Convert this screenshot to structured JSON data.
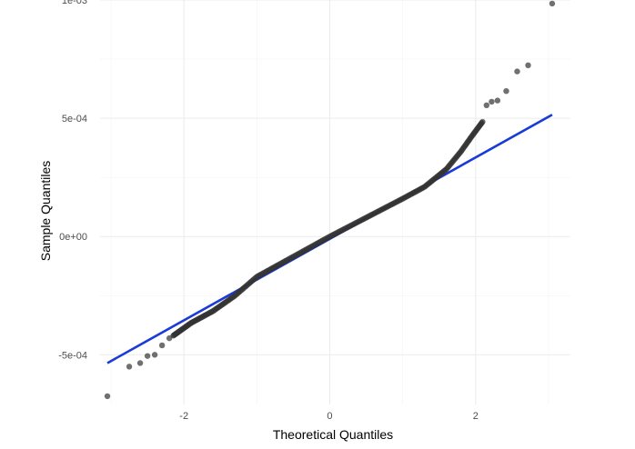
{
  "chart_data": {
    "type": "scatter",
    "title": "",
    "xlabel": "Theoretical Quantiles",
    "ylabel": "Sample Quantiles",
    "xlim": [
      -3.15,
      3.3
    ],
    "ylim": [
      -0.00071,
      0.001
    ],
    "x_ticks": [
      {
        "value": -2,
        "label": "-2"
      },
      {
        "value": 0,
        "label": "0"
      },
      {
        "value": 2,
        "label": "2"
      }
    ],
    "y_ticks": [
      {
        "value": -0.0005,
        "label": "-5e-04"
      },
      {
        "value": 0,
        "label": "0e+00"
      },
      {
        "value": 0.0005,
        "label": "5e-04"
      },
      {
        "value": 0.001,
        "label": "1e-03"
      }
    ],
    "grid": true,
    "legend": "none",
    "colors": {
      "points": "#333333",
      "line": "#1a3bd6",
      "grid": "#ebebeb"
    },
    "reference_line": {
      "x": [
        -3.05,
        3.05
      ],
      "y": [
        -0.000535,
        0.000515
      ]
    },
    "outlier_points": [
      {
        "x": -3.05,
        "y": -0.000675
      },
      {
        "x": -2.75,
        "y": -0.00055
      },
      {
        "x": -2.6,
        "y": -0.000535
      },
      {
        "x": -2.5,
        "y": -0.000505
      },
      {
        "x": -2.4,
        "y": -0.0005
      },
      {
        "x": -2.3,
        "y": -0.00046
      },
      {
        "x": -2.2,
        "y": -0.00043
      },
      {
        "x": 2.15,
        "y": 0.000555
      },
      {
        "x": 2.22,
        "y": 0.00057
      },
      {
        "x": 2.3,
        "y": 0.000575
      },
      {
        "x": 2.42,
        "y": 0.000615
      },
      {
        "x": 2.57,
        "y": 0.000698
      },
      {
        "x": 2.72,
        "y": 0.000724
      },
      {
        "x": 3.05,
        "y": 0.000985
      }
    ],
    "bulk_curve": [
      {
        "x": -2.15,
        "y": -0.00042
      },
      {
        "x": -1.9,
        "y": -0.000365
      },
      {
        "x": -1.6,
        "y": -0.000315
      },
      {
        "x": -1.3,
        "y": -0.00025
      },
      {
        "x": -1.0,
        "y": -0.00017
      },
      {
        "x": -0.5,
        "y": -8.5e-05
      },
      {
        "x": 0.0,
        "y": 0.0
      },
      {
        "x": 0.5,
        "y": 8e-05
      },
      {
        "x": 1.0,
        "y": 0.00016
      },
      {
        "x": 1.3,
        "y": 0.00021
      },
      {
        "x": 1.6,
        "y": 0.000285
      },
      {
        "x": 1.8,
        "y": 0.00036
      },
      {
        "x": 1.95,
        "y": 0.000425
      },
      {
        "x": 2.1,
        "y": 0.000487
      }
    ],
    "bulk_point_count": 260
  }
}
